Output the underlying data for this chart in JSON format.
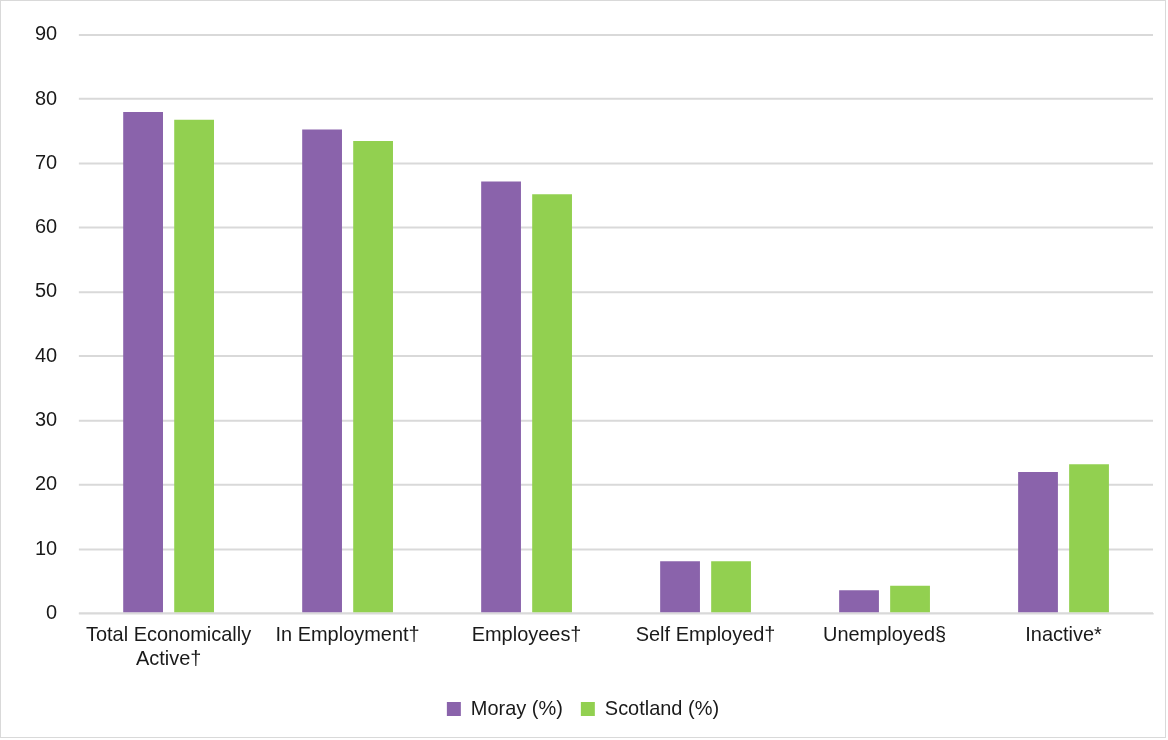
{
  "chart_data": {
    "type": "bar",
    "categories": [
      "Total Economically Active†",
      "In Employment†",
      "Employees†",
      "Self Employed†",
      "Unemployed§",
      "Inactive*"
    ],
    "series": [
      {
        "name": "Moray (%)",
        "color": "#8a63ab",
        "values": [
          78.0,
          75.3,
          67.2,
          8.1,
          3.6,
          22.0
        ]
      },
      {
        "name": "Scotland (%)",
        "color": "#92d050",
        "values": [
          76.8,
          73.5,
          65.2,
          8.1,
          4.3,
          23.2
        ]
      }
    ],
    "ylim": [
      0,
      90
    ],
    "yticks": [
      0,
      10,
      20,
      30,
      40,
      50,
      60,
      70,
      80,
      90
    ],
    "grid": "y",
    "legend": "bottom"
  }
}
